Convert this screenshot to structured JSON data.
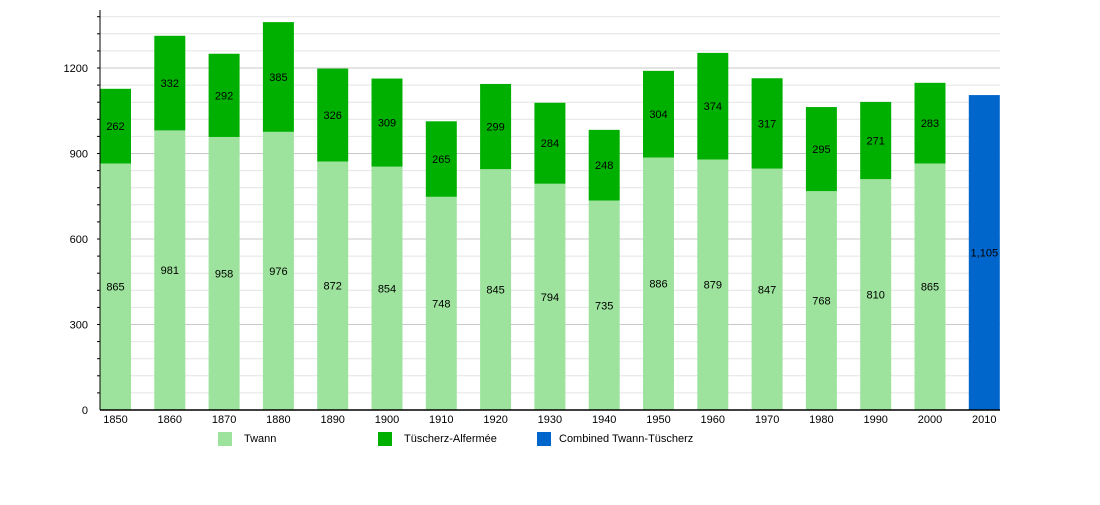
{
  "chart_data": {
    "type": "bar",
    "stacked": true,
    "categories": [
      "1850",
      "1860",
      "1870",
      "1880",
      "1890",
      "1900",
      "1910",
      "1920",
      "1930",
      "1940",
      "1950",
      "1960",
      "1970",
      "1980",
      "1990",
      "2000",
      "2010"
    ],
    "series": [
      {
        "name": "Twann",
        "color": "#9de39d",
        "values": [
          865,
          981,
          958,
          976,
          872,
          854,
          748,
          845,
          794,
          735,
          886,
          879,
          847,
          768,
          810,
          865,
          null
        ]
      },
      {
        "name": "Tüscherz-Alfermée",
        "color": "#00b000",
        "values": [
          262,
          332,
          292,
          385,
          326,
          309,
          265,
          299,
          284,
          248,
          304,
          374,
          317,
          295,
          271,
          283,
          null
        ]
      },
      {
        "name": "Combined Twann-Tüscherz",
        "color": "#0066cc",
        "values": [
          null,
          null,
          null,
          null,
          null,
          null,
          null,
          null,
          null,
          null,
          null,
          null,
          null,
          null,
          null,
          null,
          1105
        ]
      }
    ],
    "data_labels_2010": "1,105",
    "yticks": [
      "0",
      "300",
      "600",
      "900",
      "1200"
    ],
    "ylim": [
      0,
      1400
    ],
    "grid": true,
    "legend": "bottom"
  }
}
